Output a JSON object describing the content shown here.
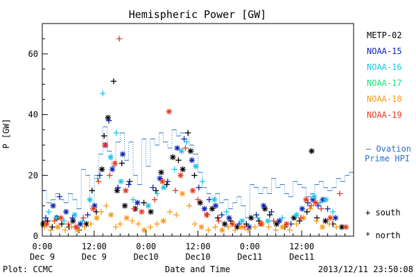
{
  "chart_data": {
    "type": "scatter",
    "title": "Hemispheric Power [GW]",
    "ylabel": "P [GW]",
    "xlabel": "Date and Time",
    "ylim": [
      0,
      70
    ],
    "yticks": [
      0,
      20,
      40,
      60
    ],
    "x_unit": "hours since Dec 9 00:00",
    "xlim": [
      0,
      72
    ],
    "xticks": [
      {
        "x": 0,
        "top": "0:00",
        "bottom": "Dec 9"
      },
      {
        "x": 12,
        "top": "12:00",
        "bottom": "Dec 9"
      },
      {
        "x": 24,
        "top": "0:00",
        "bottom": "Dec10"
      },
      {
        "x": 36,
        "top": "12:00",
        "bottom": "Dec10"
      },
      {
        "x": 48,
        "top": "0:00",
        "bottom": "Dec11"
      },
      {
        "x": 60,
        "top": "12:00",
        "bottom": "Dec11"
      }
    ],
    "legend_position": "right",
    "symbol_legend": {
      "south": "+ south",
      "north": "* north"
    },
    "footer_left": "Plot: CCMC",
    "footer_right": "2013/12/11 23:50:08",
    "ovation_label": [
      "— Ovation",
      "Prime HPI"
    ],
    "series": [
      {
        "name": "METP-02",
        "color": "#000000",
        "points": [
          [
            0.2,
            4,
            "n"
          ],
          [
            1.2,
            5,
            "s"
          ],
          [
            2.3,
            3,
            "s"
          ],
          [
            3.4,
            6,
            "n"
          ],
          [
            4.5,
            4,
            "s"
          ],
          [
            6.2,
            3,
            "s"
          ],
          [
            7.1,
            5,
            "n"
          ],
          [
            8.5,
            2,
            "s"
          ],
          [
            10.2,
            4,
            "n"
          ],
          [
            11.5,
            15,
            "s"
          ],
          [
            12.5,
            8,
            "s"
          ],
          [
            13.8,
            22,
            "n"
          ],
          [
            14.3,
            33,
            "s"
          ],
          [
            15.2,
            39,
            "n"
          ],
          [
            16.5,
            51,
            "s"
          ],
          [
            17.3,
            15,
            "n"
          ],
          [
            18.4,
            24,
            "s"
          ],
          [
            19.1,
            10,
            "n"
          ],
          [
            20.2,
            18,
            "s"
          ],
          [
            21.5,
            9,
            "n"
          ],
          [
            23.5,
            11,
            "s"
          ],
          [
            25.1,
            8,
            "n"
          ],
          [
            26.3,
            15,
            "s"
          ],
          [
            27.5,
            21,
            "n"
          ],
          [
            28.8,
            17,
            "s"
          ],
          [
            30.2,
            26,
            "n"
          ],
          [
            31.5,
            25,
            "s"
          ],
          [
            32.5,
            22,
            "n"
          ],
          [
            33.7,
            34,
            "s"
          ],
          [
            34.3,
            28,
            "n"
          ],
          [
            35.2,
            20,
            "s"
          ],
          [
            36.5,
            11,
            "n"
          ],
          [
            38.1,
            7,
            "s"
          ],
          [
            39.3,
            9,
            "n"
          ],
          [
            40.6,
            6,
            "s"
          ],
          [
            42.2,
            4,
            "n"
          ],
          [
            43.6,
            5,
            "s"
          ],
          [
            45.1,
            3,
            "n"
          ],
          [
            47.2,
            4,
            "s"
          ],
          [
            48.3,
            6,
            "n"
          ],
          [
            50.1,
            5,
            "s"
          ],
          [
            51.5,
            9,
            "n"
          ],
          [
            52.6,
            7,
            "s"
          ],
          [
            54.2,
            4,
            "n"
          ],
          [
            56.1,
            3,
            "s"
          ],
          [
            58.2,
            6,
            "n"
          ],
          [
            59.5,
            5,
            "s"
          ],
          [
            61.2,
            8,
            "s"
          ],
          [
            62.3,
            28,
            "n"
          ],
          [
            63.5,
            6,
            "s"
          ],
          [
            65.5,
            5,
            "n"
          ],
          [
            67.2,
            4,
            "s"
          ],
          [
            69.3,
            3,
            "n"
          ]
        ]
      },
      {
        "name": "NOAA-15",
        "color": "#0b22b4",
        "points": [
          [
            0.8,
            6,
            "s"
          ],
          [
            2.5,
            10,
            "n"
          ],
          [
            4.0,
            13,
            "s"
          ],
          [
            5.5,
            8,
            "n"
          ],
          [
            7.0,
            6,
            "s"
          ],
          [
            8.8,
            4,
            "n"
          ],
          [
            10.5,
            7,
            "s"
          ],
          [
            12.1,
            10,
            "n"
          ],
          [
            13.3,
            20,
            "s"
          ],
          [
            14.6,
            30,
            "n"
          ],
          [
            15.4,
            38,
            "s"
          ],
          [
            16.2,
            22,
            "n"
          ],
          [
            17.5,
            16,
            "s"
          ],
          [
            18.6,
            27,
            "n"
          ],
          [
            20.0,
            17,
            "s"
          ],
          [
            22.0,
            11,
            "n"
          ],
          [
            25.6,
            16,
            "s"
          ],
          [
            27.2,
            19,
            "n"
          ],
          [
            29.0,
            18,
            "s"
          ],
          [
            31.2,
            29,
            "n"
          ],
          [
            32.8,
            32,
            "s"
          ],
          [
            34.6,
            25,
            "n"
          ],
          [
            36.2,
            16,
            "s"
          ],
          [
            37.5,
            9,
            "n"
          ],
          [
            38.6,
            12,
            "s"
          ],
          [
            40.1,
            10,
            "n"
          ],
          [
            41.5,
            7,
            "s"
          ],
          [
            43.2,
            6,
            "n"
          ],
          [
            45.5,
            4,
            "s"
          ],
          [
            47.8,
            3,
            "n"
          ],
          [
            49.5,
            7,
            "s"
          ],
          [
            51.2,
            10,
            "n"
          ],
          [
            53.0,
            8,
            "s"
          ],
          [
            54.8,
            5,
            "n"
          ],
          [
            57.5,
            4,
            "s"
          ],
          [
            60.1,
            9,
            "n"
          ],
          [
            61.4,
            11,
            "s"
          ],
          [
            62.6,
            12,
            "n"
          ],
          [
            63.8,
            10,
            "s"
          ],
          [
            64.9,
            12,
            "n"
          ],
          [
            66.0,
            9,
            "s"
          ],
          [
            67.8,
            6,
            "n"
          ]
        ]
      },
      {
        "name": "NOAA-16",
        "color": "#1ec2e6",
        "points": [
          [
            1.5,
            8,
            "s"
          ],
          [
            3.2,
            6,
            "n"
          ],
          [
            5.0,
            5,
            "s"
          ],
          [
            7.5,
            7,
            "n"
          ],
          [
            9.3,
            5,
            "s"
          ],
          [
            11.0,
            12,
            "n"
          ],
          [
            12.8,
            19,
            "s"
          ],
          [
            14.0,
            47,
            "s"
          ],
          [
            15.8,
            26,
            "n"
          ],
          [
            17.1,
            34,
            "s"
          ],
          [
            18.2,
            18,
            "n"
          ],
          [
            21.0,
            12,
            "s"
          ],
          [
            24.5,
            10,
            "n"
          ],
          [
            26.6,
            14,
            "s"
          ],
          [
            28.1,
            16,
            "n"
          ],
          [
            30.6,
            22,
            "s"
          ],
          [
            32.2,
            28,
            "n"
          ],
          [
            33.4,
            31,
            "s"
          ],
          [
            35.5,
            23,
            "n"
          ],
          [
            37.0,
            18,
            "s"
          ],
          [
            39.8,
            12,
            "n"
          ],
          [
            42.6,
            8,
            "s"
          ],
          [
            46.2,
            5,
            "n"
          ],
          [
            49.8,
            6,
            "s"
          ],
          [
            52.2,
            5,
            "n"
          ],
          [
            55.5,
            6,
            "s"
          ],
          [
            58.8,
            7,
            "n"
          ],
          [
            61.8,
            10,
            "s"
          ],
          [
            62.9,
            13,
            "n"
          ],
          [
            64.2,
            11,
            "s"
          ],
          [
            65.6,
            12,
            "n"
          ],
          [
            67.2,
            8,
            "s"
          ]
        ]
      },
      {
        "name": "NOAA-17",
        "color": "#16e078",
        "points": []
      },
      {
        "name": "NOAA-18",
        "color": "#f59a18",
        "points": [
          [
            0.5,
            3,
            "s"
          ],
          [
            2.0,
            2,
            "s"
          ],
          [
            3.6,
            3,
            "n"
          ],
          [
            5.3,
            2,
            "s"
          ],
          [
            6.8,
            3,
            "s"
          ],
          [
            8.2,
            2,
            "n"
          ],
          [
            9.8,
            3,
            "s"
          ],
          [
            11.2,
            4,
            "s"
          ],
          [
            12.6,
            6,
            "n"
          ],
          [
            13.6,
            8,
            "s"
          ],
          [
            14.8,
            10,
            "s"
          ],
          [
            15.9,
            7,
            "n"
          ],
          [
            17.0,
            3,
            "s"
          ],
          [
            18.0,
            4,
            "s"
          ],
          [
            19.5,
            6,
            "n"
          ],
          [
            20.8,
            5,
            "s"
          ],
          [
            22.2,
            4,
            "s"
          ],
          [
            23.6,
            2,
            "n"
          ],
          [
            25.0,
            3,
            "s"
          ],
          [
            26.5,
            4,
            "s"
          ],
          [
            28.0,
            5,
            "n"
          ],
          [
            29.5,
            8,
            "s"
          ],
          [
            31.0,
            7,
            "s"
          ],
          [
            32.4,
            14,
            "n"
          ],
          [
            34.0,
            10,
            "s"
          ],
          [
            35.3,
            4,
            "s"
          ],
          [
            36.8,
            3,
            "n"
          ],
          [
            38.4,
            2,
            "s"
          ],
          [
            40.0,
            3,
            "s"
          ],
          [
            41.6,
            2,
            "n"
          ],
          [
            43.0,
            3,
            "s"
          ],
          [
            44.6,
            2,
            "s"
          ],
          [
            46.0,
            3,
            "n"
          ],
          [
            47.6,
            2,
            "s"
          ],
          [
            49.2,
            3,
            "s"
          ],
          [
            50.8,
            4,
            "n"
          ],
          [
            52.4,
            3,
            "s"
          ],
          [
            54.0,
            2,
            "s"
          ],
          [
            55.6,
            3,
            "n"
          ],
          [
            57.2,
            2,
            "s"
          ],
          [
            58.8,
            4,
            "s"
          ],
          [
            60.4,
            6,
            "n"
          ],
          [
            62.0,
            9,
            "s"
          ],
          [
            63.4,
            5,
            "s"
          ],
          [
            64.8,
            3,
            "n"
          ],
          [
            66.4,
            4,
            "s"
          ],
          [
            68.0,
            3,
            "s"
          ]
        ]
      },
      {
        "name": "NOAA-19",
        "color": "#e8361c",
        "points": [
          [
            1.0,
            4,
            "n"
          ],
          [
            2.8,
            5,
            "s"
          ],
          [
            4.3,
            6,
            "n"
          ],
          [
            6.0,
            4,
            "s"
          ],
          [
            7.8,
            3,
            "n"
          ],
          [
            9.5,
            6,
            "s"
          ],
          [
            11.8,
            9,
            "n"
          ],
          [
            13.0,
            18,
            "s"
          ],
          [
            14.5,
            30,
            "n"
          ],
          [
            15.6,
            20,
            "s"
          ],
          [
            16.8,
            24,
            "n"
          ],
          [
            17.8,
            65,
            "s"
          ],
          [
            19.3,
            15,
            "n"
          ],
          [
            21.2,
            9,
            "s"
          ],
          [
            23.0,
            8,
            "n"
          ],
          [
            26.0,
            12,
            "s"
          ],
          [
            27.8,
            18,
            "n"
          ],
          [
            29.3,
            41,
            "n"
          ],
          [
            30.8,
            15,
            "s"
          ],
          [
            32.0,
            20,
            "n"
          ],
          [
            33.1,
            29,
            "s"
          ],
          [
            34.8,
            15,
            "n"
          ],
          [
            36.0,
            12,
            "s"
          ],
          [
            38.0,
            7,
            "n"
          ],
          [
            40.8,
            5,
            "s"
          ],
          [
            44.0,
            4,
            "n"
          ],
          [
            46.8,
            3,
            "s"
          ],
          [
            50.5,
            4,
            "n"
          ],
          [
            53.5,
            5,
            "s"
          ],
          [
            56.5,
            4,
            "n"
          ],
          [
            59.8,
            6,
            "s"
          ],
          [
            61.0,
            12,
            "n"
          ],
          [
            62.2,
            10,
            "s"
          ],
          [
            63.2,
            11,
            "n"
          ],
          [
            64.5,
            9,
            "s"
          ],
          [
            66.6,
            6,
            "n"
          ],
          [
            68.8,
            14,
            "s"
          ],
          [
            70.2,
            3,
            "n"
          ]
        ]
      }
    ],
    "ovation_series": {
      "name": "Ovation Prime HPI",
      "color": "#2a70c8",
      "x": [
        0,
        1,
        2,
        3,
        4,
        5,
        6,
        7,
        8,
        9,
        10,
        11,
        12,
        13,
        14,
        15,
        16,
        17,
        18,
        19,
        20,
        21,
        22,
        23,
        24,
        25,
        26,
        27,
        28,
        29,
        30,
        31,
        32,
        33,
        34,
        35,
        36,
        37,
        38,
        39,
        40,
        41,
        42,
        43,
        44,
        45,
        46,
        47,
        48,
        49,
        50,
        51,
        52,
        53,
        54,
        55,
        56,
        57,
        58,
        59,
        60,
        61,
        62,
        63,
        64,
        65,
        66,
        67,
        68,
        69,
        70,
        71,
        72
      ],
      "y": [
        15,
        11,
        12,
        14,
        12,
        11,
        14,
        12,
        9,
        22,
        20,
        9,
        20,
        27,
        36,
        28,
        23,
        31,
        34,
        25,
        31,
        20,
        17,
        32,
        23,
        32,
        30,
        34,
        31,
        29,
        35,
        33,
        34,
        34,
        30,
        27,
        21,
        16,
        14,
        12,
        14,
        11,
        12,
        9,
        11,
        13,
        10,
        6,
        17,
        16,
        14,
        16,
        14,
        19,
        16,
        17,
        14,
        13,
        18,
        17,
        16,
        13,
        14,
        17,
        18,
        16,
        15,
        16,
        19,
        18,
        20,
        21,
        19
      ]
    }
  }
}
